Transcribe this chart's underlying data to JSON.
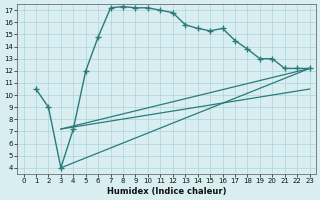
{
  "xlabel": "Humidex (Indice chaleur)",
  "bg_color": "#d8eef0",
  "grid_color": "#aed4d8",
  "line_color": "#2d7a7a",
  "xlim": [
    -0.5,
    23.5
  ],
  "ylim": [
    3.5,
    17.5
  ],
  "xticks": [
    0,
    1,
    2,
    3,
    4,
    5,
    6,
    7,
    8,
    9,
    10,
    11,
    12,
    13,
    14,
    15,
    16,
    17,
    18,
    19,
    20,
    21,
    22,
    23
  ],
  "yticks": [
    4,
    5,
    6,
    7,
    8,
    9,
    10,
    11,
    12,
    13,
    14,
    15,
    16,
    17
  ],
  "curve1_x": [
    1,
    2,
    3,
    4,
    5,
    6,
    7,
    8,
    9,
    10,
    11,
    12,
    13,
    14,
    15,
    16,
    17,
    18,
    19,
    20,
    21,
    22,
    23
  ],
  "curve1_y": [
    10.5,
    9.0,
    4.0,
    7.2,
    12.0,
    14.8,
    17.2,
    17.3,
    17.2,
    17.2,
    17.0,
    16.8,
    15.8,
    15.5,
    15.3,
    15.5,
    14.5,
    13.8,
    13.0,
    13.0,
    12.2,
    12.2,
    12.2
  ],
  "line2_x": [
    3,
    23
  ],
  "line2_y": [
    7.2,
    12.2
  ],
  "line3_x": [
    3,
    23
  ],
  "line3_y": [
    7.2,
    10.5
  ],
  "line4_x": [
    3,
    23
  ],
  "line4_y": [
    4.0,
    12.2
  ]
}
